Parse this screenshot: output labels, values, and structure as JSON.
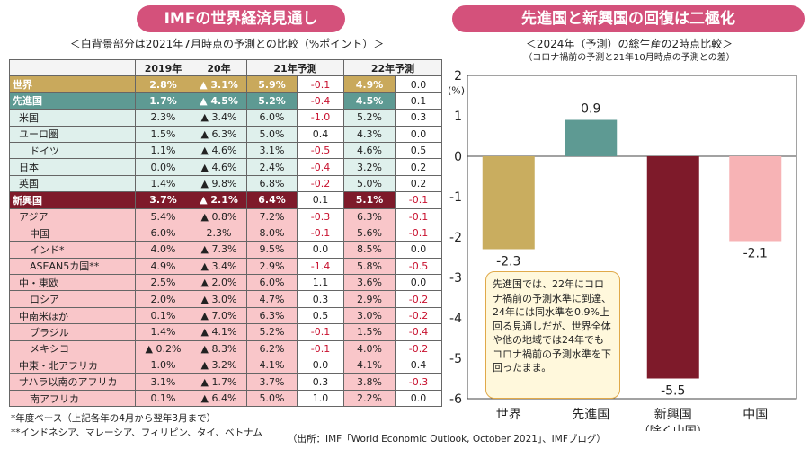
{
  "left_panel": {
    "title": "IMFの世界経済見通し",
    "subtitle": "＜白背景部分は2021年7月時点の予測との比較（%ポイント）＞",
    "headers": [
      "",
      "2019年",
      "20年",
      "21年予測",
      "",
      "22年予測",
      ""
    ],
    "rows": [
      {
        "name": "世界",
        "cls": "world",
        "ind": 0,
        "v": [
          "2.8%",
          "▲ 3.1%",
          "5.9%",
          "-0.1",
          "4.9%",
          "0.0"
        ]
      },
      {
        "name": "先進国",
        "cls": "adv",
        "ind": 0,
        "v": [
          "1.7%",
          "▲ 4.5%",
          "5.2%",
          "-0.4",
          "4.5%",
          "0.1"
        ]
      },
      {
        "name": "米国",
        "cls": "advsub",
        "ind": 1,
        "v": [
          "2.3%",
          "▲ 3.4%",
          "6.0%",
          "-1.0",
          "5.2%",
          "0.3"
        ]
      },
      {
        "name": "ユーロ圏",
        "cls": "advsub",
        "ind": 1,
        "v": [
          "1.5%",
          "▲ 6.3%",
          "5.0%",
          "0.4",
          "4.3%",
          "0.0"
        ]
      },
      {
        "name": "ドイツ",
        "cls": "advsub",
        "ind": 2,
        "v": [
          "1.1%",
          "▲ 4.6%",
          "3.1%",
          "-0.5",
          "4.6%",
          "0.5"
        ]
      },
      {
        "name": "日本",
        "cls": "advsub",
        "ind": 1,
        "v": [
          "0.0%",
          "▲ 4.6%",
          "2.4%",
          "-0.4",
          "3.2%",
          "0.2"
        ]
      },
      {
        "name": "英国",
        "cls": "advsub",
        "ind": 1,
        "v": [
          "1.4%",
          "▲ 9.8%",
          "6.8%",
          "-0.2",
          "5.0%",
          "0.2"
        ]
      },
      {
        "name": "新興国",
        "cls": "em",
        "ind": 0,
        "v": [
          "3.7%",
          "▲ 2.1%",
          "6.4%",
          "0.1",
          "5.1%",
          "-0.1"
        ]
      },
      {
        "name": "アジア",
        "cls": "emsub",
        "ind": 1,
        "v": [
          "5.4%",
          "▲ 0.8%",
          "7.2%",
          "-0.3",
          "6.3%",
          "-0.1"
        ]
      },
      {
        "name": "中国",
        "cls": "emsub",
        "ind": 2,
        "v": [
          "6.0%",
          "2.3%",
          "8.0%",
          "-0.1",
          "5.6%",
          "-0.1"
        ]
      },
      {
        "name": "インド*",
        "cls": "emsub",
        "ind": 2,
        "v": [
          "4.0%",
          "▲ 7.3%",
          "9.5%",
          "0.0",
          "8.5%",
          "0.0"
        ]
      },
      {
        "name": "ASEAN5カ国**",
        "cls": "emsub",
        "ind": 2,
        "v": [
          "4.9%",
          "▲ 3.4%",
          "2.9%",
          "-1.4",
          "5.8%",
          "-0.5"
        ]
      },
      {
        "name": "中・東欧",
        "cls": "emsub",
        "ind": 1,
        "v": [
          "2.5%",
          "▲ 2.0%",
          "6.0%",
          "1.1",
          "3.6%",
          "0.0"
        ]
      },
      {
        "name": "ロシア",
        "cls": "emsub",
        "ind": 2,
        "v": [
          "2.0%",
          "▲ 3.0%",
          "4.7%",
          "0.3",
          "2.9%",
          "-0.2"
        ]
      },
      {
        "name": "中南米ほか",
        "cls": "emsub",
        "ind": 1,
        "v": [
          "0.1%",
          "▲ 7.0%",
          "6.3%",
          "0.5",
          "3.0%",
          "-0.2"
        ]
      },
      {
        "name": "ブラジル",
        "cls": "emsub",
        "ind": 2,
        "v": [
          "1.4%",
          "▲ 4.1%",
          "5.2%",
          "-0.1",
          "1.5%",
          "-0.4"
        ]
      },
      {
        "name": "メキシコ",
        "cls": "emsub",
        "ind": 2,
        "v": [
          "▲ 0.2%",
          "▲ 8.3%",
          "6.2%",
          "-0.1",
          "4.0%",
          "-0.2"
        ]
      },
      {
        "name": "中東・北アフリカ",
        "cls": "emsub",
        "ind": 1,
        "v": [
          "1.0%",
          "▲ 3.2%",
          "4.1%",
          "0.0",
          "4.1%",
          "0.4"
        ]
      },
      {
        "name": "サハラ以南のアフリカ",
        "cls": "emsub",
        "ind": 1,
        "v": [
          "3.1%",
          "▲ 1.7%",
          "3.7%",
          "0.3",
          "3.8%",
          "-0.3"
        ]
      },
      {
        "name": "南アフリカ",
        "cls": "emsub",
        "ind": 2,
        "v": [
          "0.1%",
          "▲ 6.4%",
          "5.0%",
          "1.0",
          "2.2%",
          "0.0"
        ]
      }
    ],
    "footnote1": "*年度ベース（上記各年の4月から翌年3月まで）",
    "footnote2": "**インドネシア、マレーシア、フィリピン、タイ、ベトナム"
  },
  "right_panel": {
    "title": "先進国と新興国の回復は二極化",
    "subtitle": "＜2024年（予測）の総生産の2時点比較＞",
    "subtitle2": "（コロナ禍前の予測と21年10月時点の予測との差）",
    "callout": "先進国では、22年にコロナ禍前の予測水準に到達、24年には同水準を0.9%上回る見通しだが、世界全体や他の地域では24年でもコロナ禍前の予測水準を下回ったまま。"
  },
  "source": "（出所：IMF「World Economic Outlook, October 2021」、IMFブログ）",
  "chart_data": {
    "type": "bar",
    "categories": [
      "世界",
      "先進国",
      "新興国",
      "中国"
    ],
    "category_sublabels": [
      "",
      "",
      "（除く中国）",
      ""
    ],
    "values": [
      -2.3,
      0.9,
      -5.5,
      -2.1
    ],
    "value_labels": [
      "-2.3",
      "0.9",
      "-5.5",
      "-2.1"
    ],
    "colors": [
      "#c9ad5f",
      "#5e9a93",
      "#7e1a2a",
      "#f7b3b5"
    ],
    "ylabel": "(%)",
    "ylim": [
      -6,
      2
    ],
    "yticks": [
      2,
      1,
      0,
      -1,
      -2,
      -3,
      -4,
      -5,
      -6
    ],
    "grid": false
  }
}
